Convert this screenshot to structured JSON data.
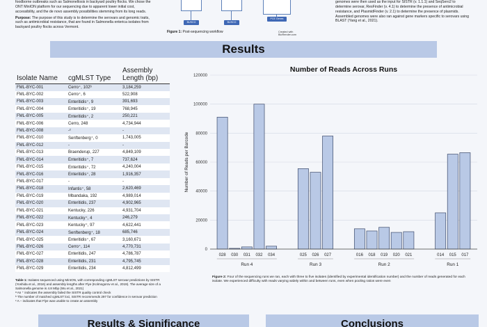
{
  "top_left": {
    "intro_tail": "foodborne outbreaks such as Salmonellosis in backyard poultry flocks. We chose the ONT MinION platform for our sequencing due to apparent lower initial cost, accessibility, and the de novo assembly possibilities stemming from its long reads.",
    "purpose_label": "Purpose:",
    "purpose_text": "The purpose of this study is to determine the serovars and genomic traits, such as antimicrobial resistance, that are found in Salmonella enterica isolates from backyard poultry flocks across Vermont."
  },
  "workflow": {
    "buttons": [
      "BUSCO",
      "BUSCO",
      "PCE Genes"
    ],
    "caption_label": "Figure 1:",
    "caption_text": "Post-sequencing workflow",
    "credit": "Created with BioRender.com"
  },
  "top_right": {
    "text": "genomes were then used as the input for SISTR (v. 1.1.1) and SeqSero2 to determine serovar, ResFinder (v. 4.1) to determine the presence of antimicrobial resistance, and PlasmidFinder (v. 2.1) to determine the presence of plasmids. Assembled genomes were also ran against gene markers specific to serovars using BLAST (Yang et al., 2021)."
  },
  "results_title": "Results",
  "table": {
    "headers": [
      "Isolate Name",
      "cgMLST Type",
      "Assembly Length (bp)"
    ],
    "rows": [
      [
        "FML-BYC-001",
        "Cerro⁺, 102ᵇ",
        "3,184,259"
      ],
      [
        "FML-BYC-002",
        "Cerro⁺, 6",
        "522,908"
      ],
      [
        "FML-BYC-003",
        "Enteritidis⁺, 9",
        "391,693"
      ],
      [
        "FML-BYC-004",
        "Enteritidis⁺, 19",
        "768,945"
      ],
      [
        "FML-BYC-005",
        "Enteritidis⁺, 2",
        "250,221"
      ],
      [
        "FML-BYC-006",
        "Cerro, 248",
        "4,734,944"
      ],
      [
        "FML-BYC-008",
        "-ᶜ",
        "-"
      ],
      [
        "FML-BYC-010",
        "Senftenberg⁺, 0",
        "1,743,005"
      ],
      [
        "FML-BYC-012",
        "-",
        "-"
      ],
      [
        "FML-BYC-013",
        "Braenderup, 227",
        "4,849,109"
      ],
      [
        "FML-BYC-014",
        "Enteritidis⁺, 7",
        "737,624"
      ],
      [
        "FML-BYC-015",
        "Enteritidis⁺, 72",
        "4,240,004"
      ],
      [
        "FML-BYC-016",
        "Enteritidis⁺, 28",
        "1,916,357"
      ],
      [
        "FML-BYC-017",
        "-",
        "-"
      ],
      [
        "FML-BYC-018",
        "Infantis⁺, 58",
        "2,620,469"
      ],
      [
        "FML-BYC-019",
        "Mbandaka, 192",
        "4,989,014"
      ],
      [
        "FML-BYC-020",
        "Enteritidis, 237",
        "4,902,965"
      ],
      [
        "FML-BYC-021",
        "Kentucky, 226",
        "4,931,704"
      ],
      [
        "FML-BYC-022",
        "Kentucky⁺, 4",
        "246,279"
      ],
      [
        "FML-BYC-023",
        "Kentucky⁺, 97",
        "4,622,441"
      ],
      [
        "FML-BYC-024",
        "Senftenberg⁺, 18",
        "685,746"
      ],
      [
        "FML-BYC-025",
        "Enteritidis⁺, 67",
        "3,160,671"
      ],
      [
        "FML-BYC-026",
        "Cerro⁺, 114",
        "4,770,731"
      ],
      [
        "FML-BYC-027",
        "Enteritidis, 247",
        "4,786,787"
      ],
      [
        "FML-BYC-028",
        "Enteritidis, 231",
        "4,795,745"
      ],
      [
        "FML-BYC-029",
        "Enteritidis, 234",
        "4,812,499"
      ]
    ],
    "caption_label": "Table 1:",
    "caption_text": "Isolates sequenced using MinION, with corresponding cgMLST serovar predictions by SISTR (Yoshida et al., 2016) and assembly lengths after Flye (Kolmogorov et al., 2019). The average size of a Salmonella genome is 4.8 Mbp (Wu et al., 2021)",
    "note_a": "ᵃ An ⁺ indicates the assembly failed the SISTR quality control check",
    "note_b": "ᵇ The number of matched cgMLST loci, SISTR recommends 297 for confidence in serovar prediction",
    "note_c": "ᶜ A – indicates that Flye was unable to create an assembly"
  },
  "chart_data": {
    "type": "bar",
    "title": "Number of Reads Across Runs",
    "ylabel": "Number of Reads per Barcode",
    "ylim": [
      0,
      120000
    ],
    "yticks": [
      0,
      20000,
      40000,
      60000,
      80000,
      100000,
      120000
    ],
    "groups": [
      {
        "name": "Run 4",
        "categories": [
          "028",
          "030",
          "031",
          "032",
          "034"
        ],
        "values": [
          91000,
          500,
          1500,
          100000,
          2000
        ]
      },
      {
        "name": "Run 3",
        "categories": [
          "025",
          "026",
          "027"
        ],
        "values": [
          55500,
          53000,
          78000
        ]
      },
      {
        "name": "Run 2",
        "categories": [
          "016",
          "018",
          "019",
          "020",
          "021"
        ],
        "values": [
          14000,
          12500,
          15000,
          11500,
          12000
        ]
      },
      {
        "name": "Run 1",
        "categories": [
          "014",
          "015",
          "017"
        ],
        "values": [
          25000,
          65500,
          66500
        ]
      }
    ],
    "bar_color": "#b9c9e6",
    "bar_stroke": "#3c4a6a"
  },
  "figure2": {
    "caption_label": "Figure 2:",
    "caption_text": "Four of the sequencing runs we ran, each with three to five isolates (identified by experimental identification number) and the number of reads generated for each isolate. We experienced difficulty with reads varying widely within and between runs, even when pooling ratios were even"
  },
  "bottom": {
    "left_title": "Results & Significance",
    "right_title": "Conclusions"
  }
}
